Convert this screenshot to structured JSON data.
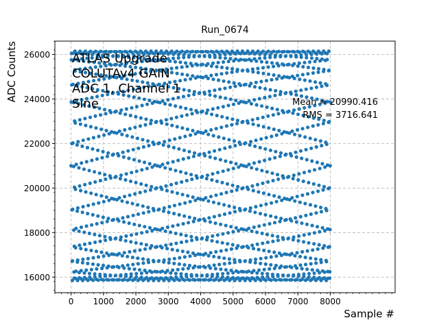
{
  "chart_data": {
    "type": "scatter",
    "title": "Run_0674",
    "xlabel": "Sample #",
    "ylabel": "ADC Counts",
    "xlim": [
      -500,
      10000
    ],
    "ylim": [
      15300,
      26600
    ],
    "x_ticks": [
      0,
      1000,
      2000,
      3000,
      4000,
      5000,
      6000,
      7000,
      8000
    ],
    "y_ticks": [
      16000,
      18000,
      20000,
      22000,
      24000,
      26000
    ],
    "grid": true,
    "marker_color": "#1f77b4",
    "series": [
      {
        "waveform": "sine",
        "x_range": [
          0,
          8000
        ],
        "y_min": 15850,
        "y_max": 26150,
        "n_samples": 8000
      }
    ],
    "annotations": {
      "info_lines": [
        "ATLAS Upgrade",
        "COLUTAv4 GAIN",
        "ADC 1, Channel 1",
        "Sine"
      ],
      "stats_lines": [
        "Mean = 20990.416",
        "RMS = 3716.641"
      ]
    }
  }
}
